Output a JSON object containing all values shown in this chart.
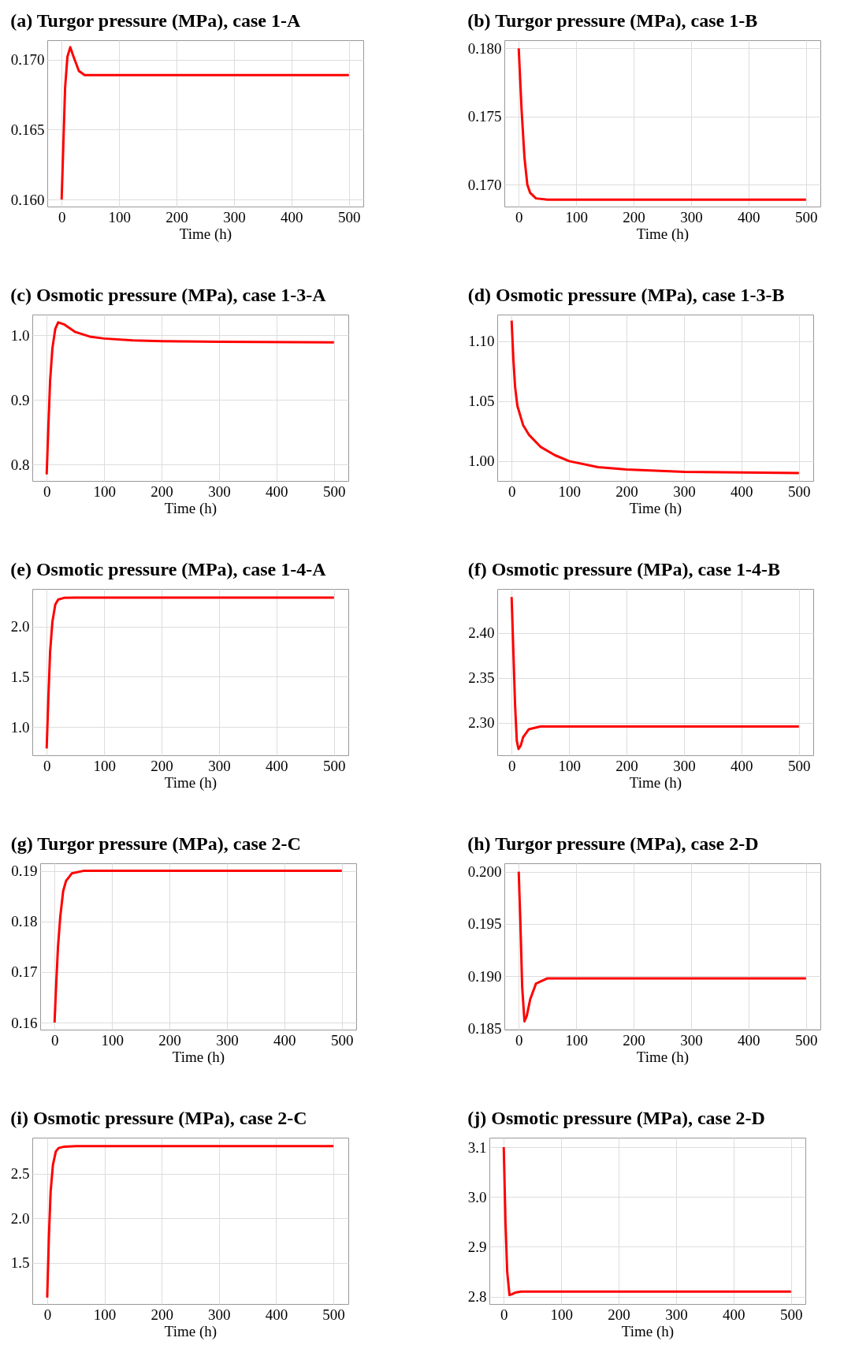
{
  "chart_data": [
    {
      "type": "line",
      "title": "(a) Turgor pressure (MPa), case 1-A",
      "xlabel": "Time (h)",
      "xlim": [
        -25,
        525
      ],
      "xticks": [
        0,
        100,
        200,
        300,
        400,
        500
      ],
      "ylim": [
        0.1595,
        0.1714
      ],
      "yticks": [
        {
          "value": 0.16,
          "label": "0.160"
        },
        0.165,
        {
          "value": 0.17,
          "label": "0.170"
        }
      ],
      "grid": true,
      "series": [
        {
          "color": "#ff0000",
          "x": [
            0,
            3,
            6,
            10,
            15,
            20,
            30,
            40,
            60,
            500
          ],
          "values": [
            0.16,
            0.164,
            0.168,
            0.1702,
            0.1709,
            0.1703,
            0.1692,
            0.1689,
            0.1689,
            0.1689
          ]
        }
      ]
    },
    {
      "type": "line",
      "title": "(b) Turgor pressure (MPa), case 1-B",
      "xlabel": "Time (h)",
      "xlim": [
        -25,
        525
      ],
      "xticks": [
        0,
        100,
        200,
        300,
        400,
        500
      ],
      "ylim": [
        0.1684,
        0.1806
      ],
      "yticks": [
        {
          "value": 0.17,
          "label": "0.170"
        },
        0.175,
        {
          "value": 0.18,
          "label": "0.180"
        }
      ],
      "grid": true,
      "series": [
        {
          "color": "#ff0000",
          "x": [
            0,
            5,
            10,
            15,
            20,
            30,
            50,
            500
          ],
          "values": [
            0.18,
            0.1755,
            0.172,
            0.17,
            0.1694,
            0.169,
            0.1689,
            0.1689
          ]
        }
      ]
    },
    {
      "type": "line",
      "title": "(c) Osmotic pressure (MPa), case 1-3-A",
      "xlabel": "Time (h)",
      "xlim": [
        -25,
        525
      ],
      "xticks": [
        0,
        100,
        200,
        300,
        400,
        500
      ],
      "ylim": [
        0.775,
        1.032
      ],
      "yticks": [
        0.8,
        0.9,
        {
          "value": 1,
          "label": "1.0"
        }
      ],
      "grid": true,
      "series": [
        {
          "color": "#ff0000",
          "x": [
            0,
            3,
            6,
            10,
            15,
            20,
            30,
            50,
            75,
            100,
            150,
            200,
            300,
            500
          ],
          "values": [
            0.785,
            0.86,
            0.93,
            0.98,
            1.01,
            1.02,
            1.017,
            1.005,
            0.998,
            0.995,
            0.992,
            0.991,
            0.99,
            0.989
          ]
        }
      ]
    },
    {
      "type": "line",
      "title": "(d) Osmotic pressure (MPa), case 1-3-B",
      "xlabel": "Time (h)",
      "xlim": [
        -25,
        525
      ],
      "xticks": [
        0,
        100,
        200,
        300,
        400,
        500
      ],
      "ylim": [
        0.9835,
        1.122
      ],
      "yticks": [
        {
          "value": 1,
          "label": "1.00"
        },
        1.05,
        {
          "value": 1.1,
          "label": "1.10"
        }
      ],
      "grid": true,
      "series": [
        {
          "color": "#ff0000",
          "x": [
            0,
            3,
            6,
            10,
            20,
            30,
            50,
            75,
            100,
            150,
            200,
            300,
            500
          ],
          "values": [
            1.117,
            1.085,
            1.062,
            1.046,
            1.03,
            1.022,
            1.012,
            1.005,
            1,
            0.995,
            0.993,
            0.991,
            0.99
          ]
        }
      ]
    },
    {
      "type": "line",
      "title": "(e) Osmotic pressure (MPa), case 1-4-A",
      "xlabel": "Time (h)",
      "xlim": [
        -25,
        525
      ],
      "xticks": [
        0,
        100,
        200,
        300,
        400,
        500
      ],
      "ylim": [
        0.718,
        2.376
      ],
      "yticks": [
        {
          "value": 1,
          "label": "1.0"
        },
        1.5,
        {
          "value": 2,
          "label": "2.0"
        }
      ],
      "grid": true,
      "series": [
        {
          "color": "#ff0000",
          "x": [
            0,
            3,
            6,
            10,
            15,
            20,
            30,
            50,
            500
          ],
          "values": [
            0.786,
            1.3,
            1.75,
            2.05,
            2.22,
            2.27,
            2.287,
            2.29,
            2.29
          ]
        }
      ]
    },
    {
      "type": "line",
      "title": "(f) Osmotic pressure (MPa), case 1-4-B",
      "xlabel": "Time (h)",
      "xlim": [
        -25,
        525
      ],
      "xticks": [
        0,
        100,
        200,
        300,
        400,
        500
      ],
      "ylim": [
        2.264,
        2.449
      ],
      "yticks": [
        {
          "value": 2.3,
          "label": "2.30"
        },
        2.35,
        {
          "value": 2.4,
          "label": "2.40"
        }
      ],
      "grid": true,
      "series": [
        {
          "color": "#ff0000",
          "x": [
            0,
            3,
            6,
            9,
            12,
            16,
            20,
            30,
            50,
            500
          ],
          "values": [
            2.44,
            2.38,
            2.32,
            2.28,
            2.271,
            2.275,
            2.284,
            2.293,
            2.296,
            2.296
          ]
        }
      ]
    },
    {
      "type": "line",
      "title": "(g) Turgor pressure (MPa), case 2-C",
      "xlabel": "Time (h)",
      "xlim": [
        -25,
        525
      ],
      "xticks": [
        0,
        100,
        200,
        300,
        400,
        500
      ],
      "ylim": [
        0.1586,
        0.1915
      ],
      "yticks": [
        0.16,
        0.17,
        0.18,
        0.19
      ],
      "grid": true,
      "series": [
        {
          "color": "#ff0000",
          "x": [
            0,
            3,
            6,
            10,
            15,
            20,
            30,
            50,
            500
          ],
          "values": [
            0.16,
            0.168,
            0.175,
            0.181,
            0.186,
            0.188,
            0.1895,
            0.19,
            0.19
          ]
        }
      ]
    },
    {
      "type": "line",
      "title": "(h) Turgor pressure (MPa), case 2-D",
      "xlabel": "Time (h)",
      "xlim": [
        -25,
        525
      ],
      "xticks": [
        0,
        100,
        200,
        300,
        400,
        500
      ],
      "ylim": [
        0.1849,
        0.2008
      ],
      "yticks": [
        0.185,
        {
          "value": 0.19,
          "label": "0.190"
        },
        0.195,
        {
          "value": 0.2,
          "label": "0.200"
        }
      ],
      "grid": true,
      "series": [
        {
          "color": "#ff0000",
          "x": [
            0,
            3,
            6,
            10,
            14,
            20,
            30,
            50,
            500
          ],
          "values": [
            0.2,
            0.195,
            0.189,
            0.1857,
            0.1862,
            0.1878,
            0.1893,
            0.1898,
            0.1898
          ]
        }
      ]
    },
    {
      "type": "line",
      "title": "(i) Osmotic pressure (MPa), case 2-C",
      "xlabel": "Time (h)",
      "xlim": [
        -26,
        526
      ],
      "xticks": [
        0,
        100,
        200,
        300,
        400,
        500
      ],
      "ylim": [
        1.038,
        2.906
      ],
      "yticks": [
        1.5,
        {
          "value": 2,
          "label": "2.0"
        },
        2.5
      ],
      "grid": true,
      "series": [
        {
          "color": "#ff0000",
          "x": [
            0,
            3,
            6,
            10,
            15,
            20,
            30,
            50,
            500
          ],
          "values": [
            1.11,
            1.8,
            2.3,
            2.6,
            2.75,
            2.79,
            2.805,
            2.81,
            2.81
          ]
        }
      ]
    },
    {
      "type": "line",
      "title": "(j) Osmotic pressure (MPa), case 2-D",
      "xlabel": "Time (h)",
      "xlim": [
        -25,
        525
      ],
      "xticks": [
        0,
        100,
        200,
        300,
        400,
        500
      ],
      "ylim": [
        2.785,
        3.119
      ],
      "yticks": [
        2.8,
        2.9,
        {
          "value": 3,
          "label": "3.0"
        },
        3.1
      ],
      "grid": true,
      "series": [
        {
          "color": "#ff0000",
          "x": [
            0,
            3,
            6,
            10,
            15,
            20,
            30,
            500
          ],
          "values": [
            3.1,
            2.95,
            2.85,
            2.803,
            2.805,
            2.808,
            2.81,
            2.81
          ]
        }
      ]
    }
  ]
}
